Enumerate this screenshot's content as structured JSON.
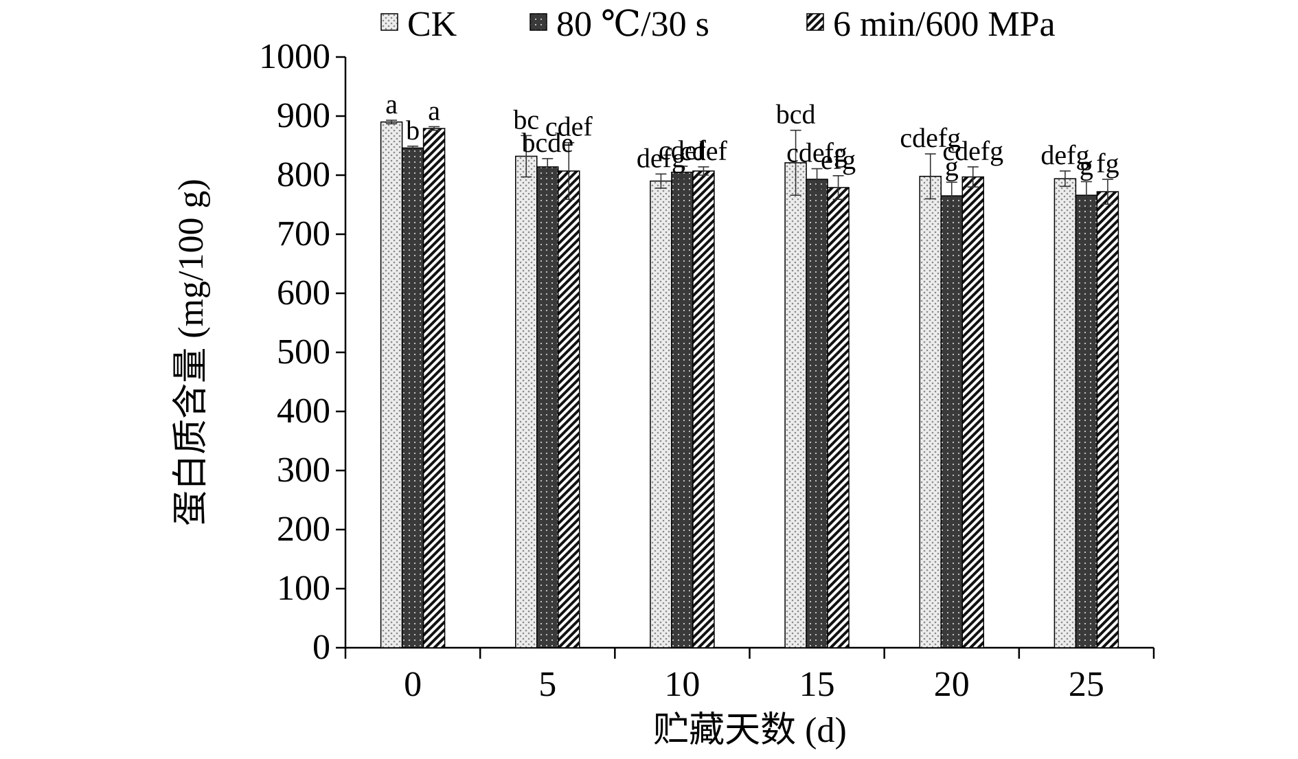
{
  "chart_data": {
    "type": "bar",
    "title": "",
    "xlabel": "贮藏天数 (d)",
    "ylabel": "蛋白质含量 (mg/100 g)",
    "ylim": [
      0,
      1000
    ],
    "yticks": [
      "0",
      "100",
      "200",
      "300",
      "400",
      "500",
      "600",
      "700",
      "800",
      "900",
      "1000"
    ],
    "categories": [
      "0",
      "5",
      "10",
      "15",
      "20",
      "25"
    ],
    "legend_position": "top",
    "grid": false,
    "series": [
      {
        "name": "CK",
        "pattern": "dots-light",
        "values": [
          890,
          832,
          790,
          821,
          798,
          794
        ],
        "errors": [
          3,
          35,
          12,
          55,
          38,
          13
        ],
        "labels": [
          "a",
          "bc",
          "defg",
          "bcd",
          "cdefg",
          "defg"
        ]
      },
      {
        "name": "80 ℃/30 s",
        "pattern": "dots-dark",
        "values": [
          846,
          814,
          805,
          793,
          765,
          766
        ],
        "errors": [
          3,
          14,
          10,
          18,
          23,
          23
        ],
        "labels": [
          "b",
          "bcde",
          "cdef",
          "cdefg",
          "g",
          "g"
        ]
      },
      {
        "name": "6 min/600 MPa",
        "pattern": "diagonal-stripes",
        "values": [
          879,
          807,
          807,
          779,
          797,
          772
        ],
        "errors": [
          3,
          48,
          7,
          20,
          17,
          21
        ],
        "labels": [
          "a",
          "cdef",
          "cdef",
          "efg",
          "cdefg",
          "fg"
        ]
      }
    ]
  }
}
